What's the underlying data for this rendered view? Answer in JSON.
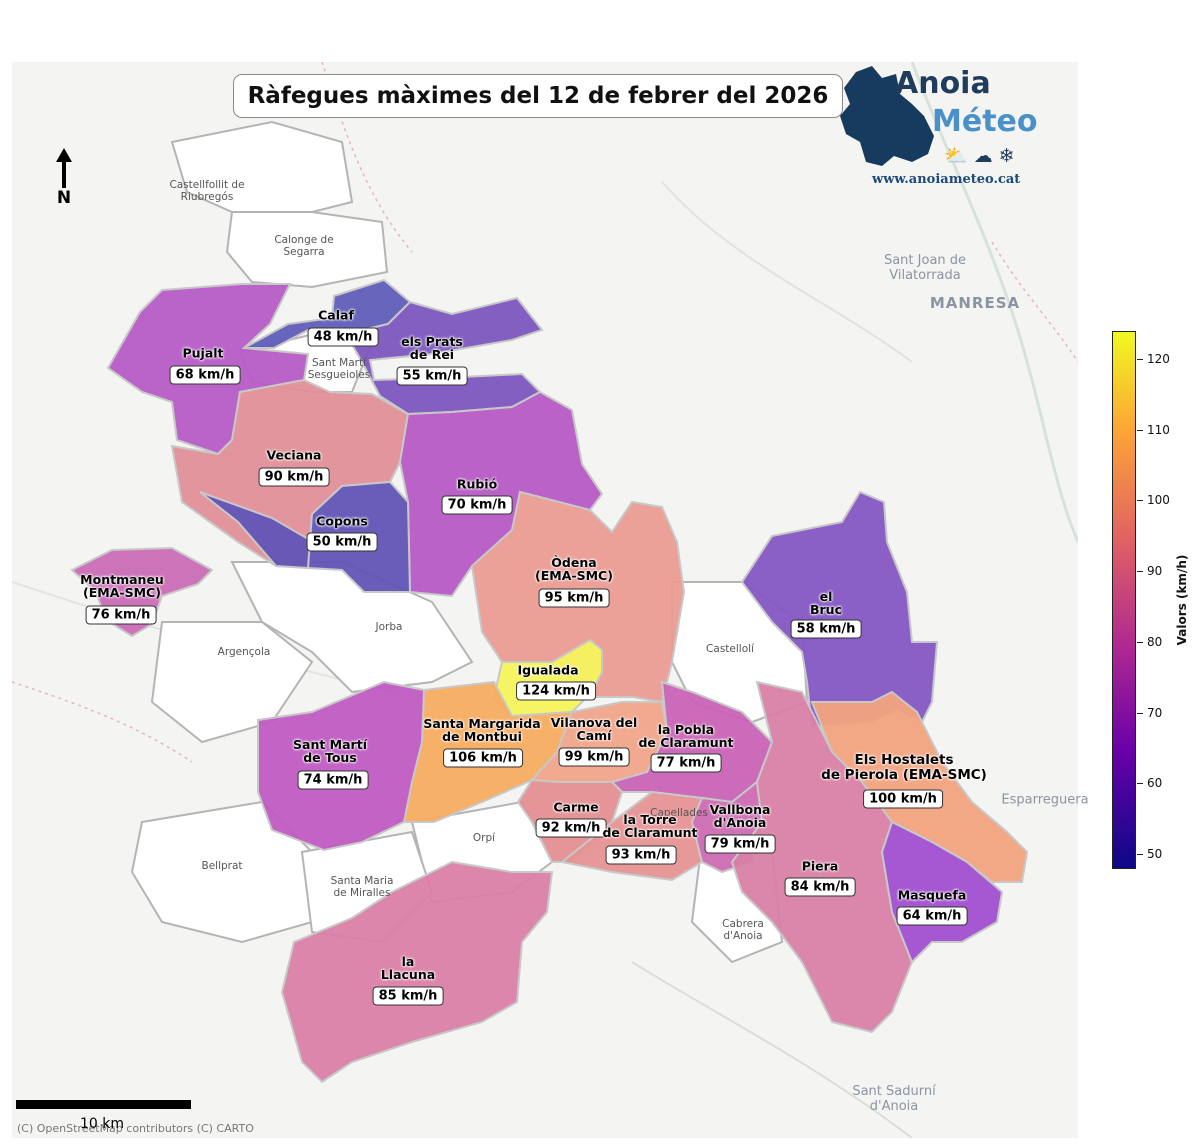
{
  "title": "Ràfegues màximes del 12 de febrer del 2026",
  "logo": {
    "line1": "Anoia",
    "line2": "Méteo",
    "url": "www.anoiameteo.cat",
    "icons": [
      "sun-cloud-icon",
      "cloud-icon",
      "snowflake-icon"
    ]
  },
  "north_label": "N",
  "scale_label": "10 km",
  "credit": "(C) OpenStreetMap contributors (C) CARTO",
  "colorbar": {
    "label": "Valors (km/h)",
    "ticks": [
      "50",
      "60",
      "70",
      "80",
      "90",
      "100",
      "110",
      "120"
    ],
    "min": 48,
    "max": 124,
    "colormap": "plasma"
  },
  "municipalities": [
    {
      "name": "Calaf",
      "value": "48 km/h",
      "kmh": 48,
      "color": "#5f5db8"
    },
    {
      "name": "Pujalt",
      "value": "68 km/h",
      "kmh": 68,
      "color": "#b65cc6"
    },
    {
      "name": "els Prats\nde Rei",
      "value": "55 km/h",
      "kmh": 55,
      "color": "#7d56bf"
    },
    {
      "name": "Veciana",
      "value": "90 km/h",
      "kmh": 90,
      "color": "#e08f97"
    },
    {
      "name": "Rubió",
      "value": "70 km/h",
      "kmh": 70,
      "color": "#b65ac4"
    },
    {
      "name": "Copons",
      "value": "50 km/h",
      "kmh": 50,
      "color": "#6254b6"
    },
    {
      "name": "Òdena\n(EMA-SMC)",
      "value": "95 km/h",
      "kmh": 95,
      "color": "#ea9b92"
    },
    {
      "name": "Montmaneu\n(EMA-SMC)",
      "value": "76 km/h",
      "kmh": 76,
      "color": "#c96bb6"
    },
    {
      "name": "el\nBruc",
      "value": "58 km/h",
      "kmh": 58,
      "color": "#8456c3"
    },
    {
      "name": "Igualada",
      "value": "124 km/h",
      "kmh": 124,
      "color": "#f4f45c"
    },
    {
      "name": "Santa Margarida\nde Montbui",
      "value": "106 km/h",
      "kmh": 106,
      "color": "#f7ac5f"
    },
    {
      "name": "Vilanova del\nCamí",
      "value": "99 km/h",
      "kmh": 99,
      "color": "#f0a48a"
    },
    {
      "name": "la Pobla\nde Claramunt",
      "value": "77 km/h",
      "kmh": 77,
      "color": "#c963b6"
    },
    {
      "name": "Sant Martí\nde Tous",
      "value": "74 km/h",
      "kmh": 74,
      "color": "#bf5bc2"
    },
    {
      "name": "Els Hostalets\nde Pierola (EMA-SMC)",
      "value": "100 km/h",
      "kmh": 100,
      "color": "#f2a37e"
    },
    {
      "name": "Carme",
      "value": "92 km/h",
      "kmh": 92,
      "color": "#e48f92"
    },
    {
      "name": "la Torre\nde Claramunt",
      "value": "93 km/h",
      "kmh": 93,
      "color": "#e69293"
    },
    {
      "name": "Vallbona\nd'Anoia",
      "value": "79 km/h",
      "kmh": 79,
      "color": "#cc6cb2"
    },
    {
      "name": "Piera",
      "value": "84 km/h",
      "kmh": 84,
      "color": "#d97fa6"
    },
    {
      "name": "Masquefa",
      "value": "64 km/h",
      "kmh": 64,
      "color": "#a04fcf"
    },
    {
      "name": "la\nLlacuna",
      "value": "85 km/h",
      "kmh": 85,
      "color": "#da80a6"
    }
  ],
  "places": [
    {
      "name": "Castellfollit de\nRiubregós"
    },
    {
      "name": "Calonge de\nSegarra"
    },
    {
      "name": "Sant Martí\nSesgueioles"
    },
    {
      "name": "Jorba"
    },
    {
      "name": "Argençola"
    },
    {
      "name": "Castellolí"
    },
    {
      "name": "Orpí"
    },
    {
      "name": "Bellprat"
    },
    {
      "name": "Santa Maria\nde Miralles"
    },
    {
      "name": "Capellades"
    },
    {
      "name": "Cabrera\nd'Anoia"
    },
    {
      "name": "Sant Joan de\nVilatorrada"
    },
    {
      "name": "MANRESA"
    },
    {
      "name": "Esparreguera"
    },
    {
      "name": "Sant Sadurní\nd'Anoia"
    }
  ]
}
